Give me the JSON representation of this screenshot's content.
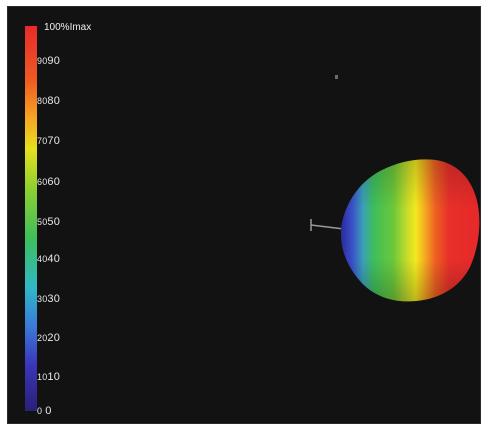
{
  "colorbar": {
    "max_label": "100%Imax",
    "ticks": [
      {
        "small": "90",
        "large": "90"
      },
      {
        "small": "80",
        "large": "80"
      },
      {
        "small": "70",
        "large": "70"
      },
      {
        "small": "60",
        "large": "60"
      },
      {
        "small": "50",
        "large": "50"
      },
      {
        "small": "40",
        "large": "40"
      },
      {
        "small": "30",
        "large": "30"
      },
      {
        "small": "20",
        "large": "20"
      },
      {
        "small": "10",
        "large": "10"
      },
      {
        "small": "0",
        "large": "0"
      }
    ],
    "colors": {
      "top": "#e8322a",
      "orange": "#f5a623",
      "yellow": "#f4e81e",
      "green": "#5cc832",
      "cyan": "#2fb8c8",
      "blue": "#3b56c8",
      "bottom": "#2a1f7a"
    }
  },
  "object": {
    "description_colors": [
      "#3b3fbf",
      "#3fbf6a",
      "#d8e82a",
      "#f0a020",
      "#e82a22"
    ]
  }
}
